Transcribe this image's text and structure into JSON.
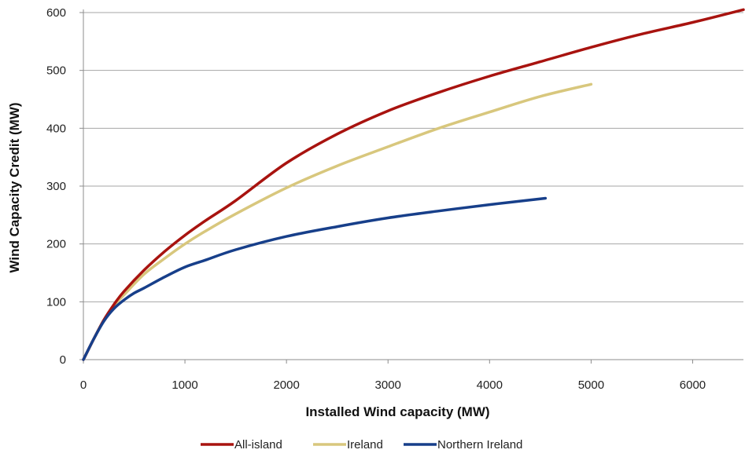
{
  "chart_data": {
    "type": "line",
    "title": "",
    "xlabel": "Installed Wind capacity (MW)",
    "ylabel": "Wind Capacity Credit (MW)",
    "xlim": [
      0,
      6500
    ],
    "ylim": [
      0,
      600
    ],
    "x_ticks": [
      0,
      1000,
      2000,
      3000,
      4000,
      5000,
      6000
    ],
    "y_ticks": [
      0,
      100,
      200,
      300,
      400,
      500,
      600
    ],
    "grid": "horizontal",
    "legend_position": "bottom",
    "series": [
      {
        "name": "All-island",
        "color": "#a8130f",
        "x": [
          0,
          100,
          200,
          300,
          400,
          600,
          800,
          1000,
          1200,
          1500,
          2000,
          2500,
          3000,
          3500,
          4000,
          4500,
          5000,
          5500,
          6000,
          6500
        ],
        "y": [
          0,
          35,
          68,
          95,
          118,
          155,
          187,
          215,
          240,
          275,
          340,
          390,
          430,
          462,
          490,
          515,
          540,
          563,
          583,
          605
        ]
      },
      {
        "name": "Ireland",
        "color": "#d8c77d",
        "x": [
          0,
          100,
          200,
          300,
          400,
          600,
          800,
          1000,
          1200,
          1500,
          2000,
          2500,
          3000,
          3500,
          4000,
          4500,
          5000
        ],
        "y": [
          0,
          35,
          68,
          93,
          112,
          148,
          175,
          200,
          222,
          252,
          297,
          335,
          368,
          400,
          428,
          455,
          476
        ]
      },
      {
        "name": "Northern Ireland",
        "color": "#173f8a",
        "x": [
          0,
          100,
          200,
          300,
          400,
          500,
          600,
          800,
          1000,
          1200,
          1500,
          2000,
          2500,
          3000,
          3500,
          4000,
          4550
        ],
        "y": [
          0,
          35,
          66,
          88,
          103,
          115,
          124,
          143,
          160,
          172,
          190,
          213,
          230,
          245,
          257,
          268,
          279
        ]
      }
    ]
  }
}
